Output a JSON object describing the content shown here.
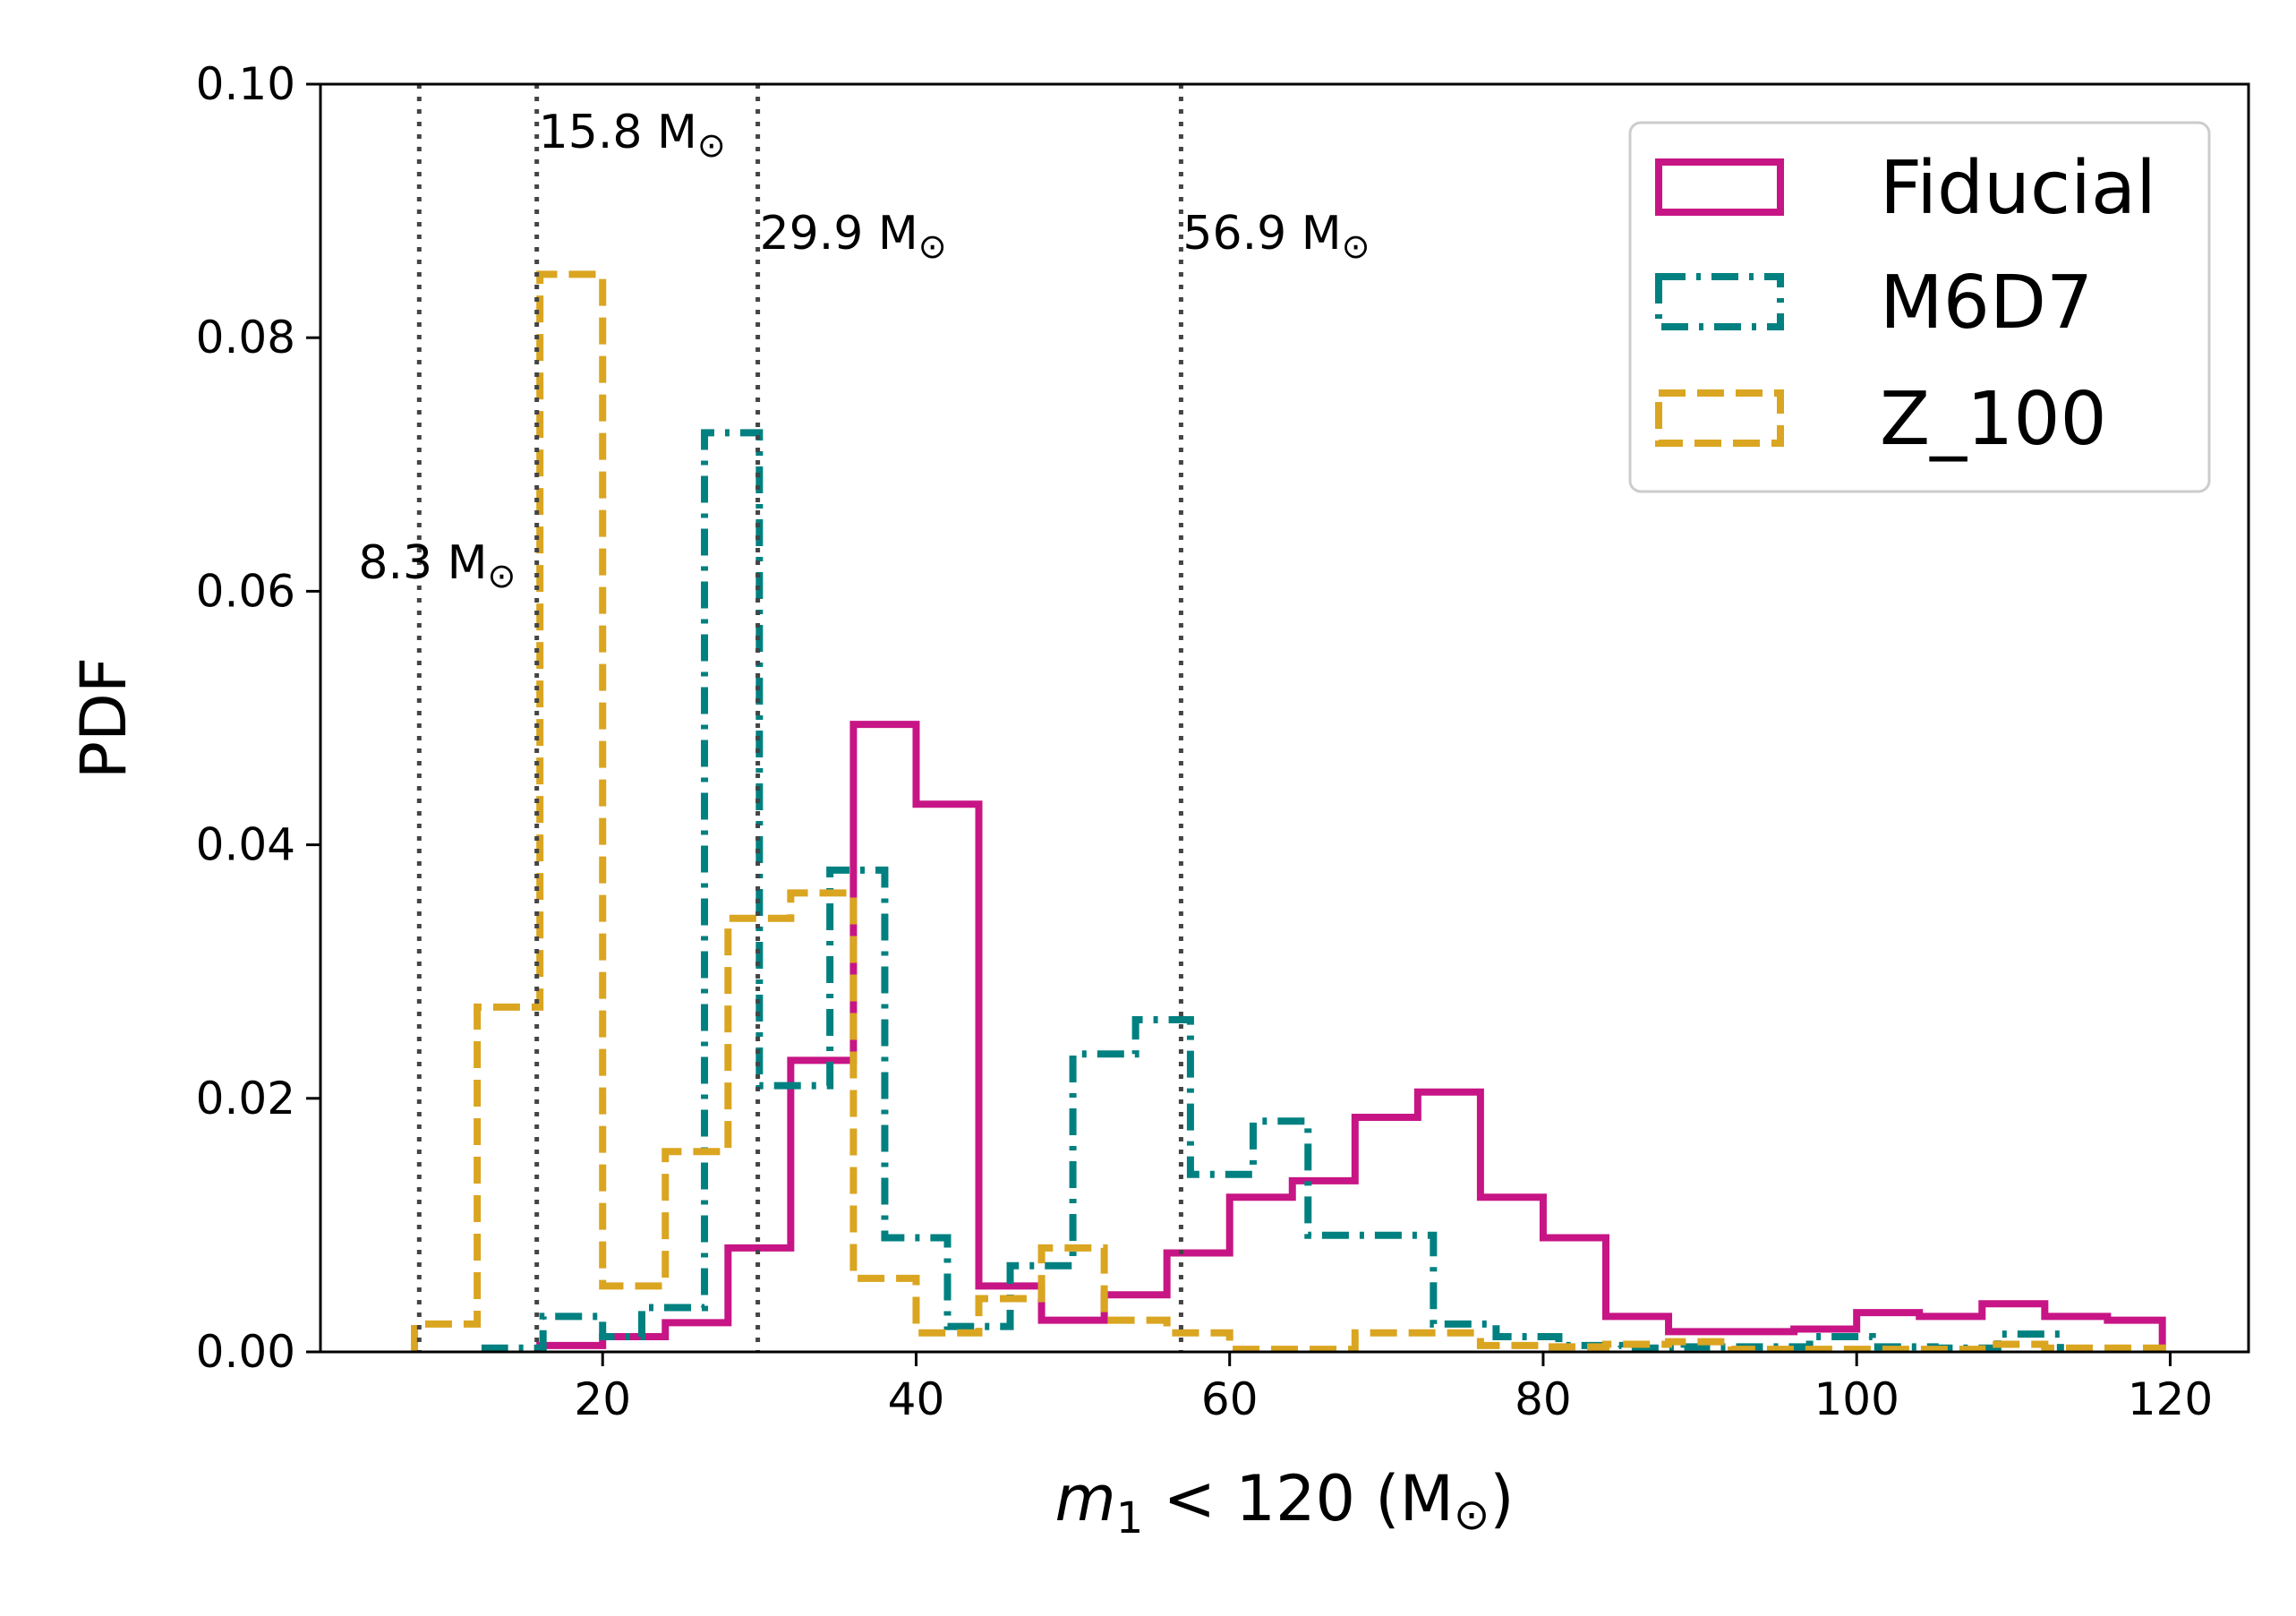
{
  "chart_data": {
    "type": "histogram-step",
    "xlabel": {
      "math": "m",
      "sub": "1",
      "rest": " < 120 (M",
      "unit_sun": "⊙",
      "close": ")"
    },
    "ylabel": "PDF",
    "xlim": [
      2,
      125
    ],
    "ylim": [
      0,
      0.1
    ],
    "xticks": [
      {
        "value": 20,
        "label": "20"
      },
      {
        "value": 40,
        "label": "40"
      },
      {
        "value": 60,
        "label": "60"
      },
      {
        "value": 80,
        "label": "80"
      },
      {
        "value": 100,
        "label": "100"
      },
      {
        "value": 120,
        "label": "120"
      }
    ],
    "yticks": [
      {
        "value": 0.0,
        "label": "0.00"
      },
      {
        "value": 0.02,
        "label": "0.02"
      },
      {
        "value": 0.04,
        "label": "0.04"
      },
      {
        "value": 0.06,
        "label": "0.06"
      },
      {
        "value": 0.08,
        "label": "0.08"
      },
      {
        "value": 0.1,
        "label": "0.10"
      }
    ],
    "grid": false,
    "legend_position": "top-right",
    "vertical_lines": [
      {
        "x": 8.3,
        "label": "8.3 M",
        "label_y": 0.061,
        "anchor": "end"
      },
      {
        "x": 15.8,
        "label": "15.8 M",
        "label_y": 0.095,
        "anchor": "start"
      },
      {
        "x": 29.9,
        "label": "29.9 M",
        "label_y": 0.087,
        "anchor": "start"
      },
      {
        "x": 56.9,
        "label": "56.9 M",
        "label_y": 0.087,
        "anchor": "start"
      }
    ],
    "sun_symbol": "⊙",
    "series": [
      {
        "name": "Fiducial",
        "color": "#c71585",
        "style": "solid",
        "edges": [
          16,
          20,
          24,
          28,
          32,
          36,
          40,
          44,
          48,
          52,
          56,
          60,
          64,
          68,
          72,
          76,
          80,
          84,
          88,
          92,
          96,
          100,
          104,
          108,
          112,
          116,
          119.5
        ],
        "values": [
          0.0005,
          0.0012,
          0.0023,
          0.0082,
          0.023,
          0.0495,
          0.0432,
          0.0052,
          0.0025,
          0.0045,
          0.0078,
          0.0122,
          0.0135,
          0.0185,
          0.0205,
          0.0122,
          0.009,
          0.0028,
          0.0016,
          0.0016,
          0.0018,
          0.0031,
          0.0028,
          0.0038,
          0.0028,
          0.0025
        ]
      },
      {
        "name": "M6D7",
        "color": "#008080",
        "style": "dashdot",
        "edges": [
          12.5,
          16.2,
          20,
          22.5,
          26.5,
          30,
          34.5,
          38,
          42,
          46,
          50,
          54,
          57.5,
          61.5,
          65,
          69,
          73,
          77,
          81,
          85,
          89,
          93,
          97,
          101,
          105,
          109,
          113
        ],
        "values": [
          0.0003,
          0.0028,
          0.0012,
          0.0035,
          0.0725,
          0.021,
          0.038,
          0.009,
          0.002,
          0.0068,
          0.0235,
          0.0262,
          0.014,
          0.0182,
          0.0092,
          0.0092,
          0.0022,
          0.0012,
          0.0005,
          0.0003,
          0.0004,
          0.0004,
          0.0012,
          0.0004,
          0.0003,
          0.0014
        ]
      },
      {
        "name": "Z_100",
        "color": "#daa520",
        "style": "dashed",
        "edges": [
          8,
          12,
          16,
          20,
          24,
          28,
          32,
          36,
          40,
          44,
          48,
          52,
          56,
          60,
          64,
          68,
          72,
          76,
          80,
          84,
          88,
          92,
          96,
          100,
          104,
          108,
          112,
          116,
          119.5
        ],
        "values": [
          0.0022,
          0.0272,
          0.085,
          0.0052,
          0.0158,
          0.0342,
          0.0362,
          0.0058,
          0.0015,
          0.0042,
          0.0082,
          0.0025,
          0.0015,
          0.0002,
          0.0002,
          0.0015,
          0.0015,
          0.0005,
          0.0004,
          0.0006,
          0.0008,
          0.0002,
          0.0002,
          0.0002,
          0.0002,
          0.0006,
          0.0003,
          0.0003
        ]
      }
    ]
  }
}
